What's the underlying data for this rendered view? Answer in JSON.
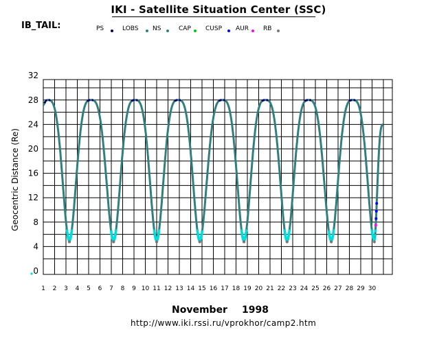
{
  "header": {
    "title": "IKI - Satellite Situation Center (SSC)",
    "region_label": "IB_TAIL:"
  },
  "legend": [
    {
      "label": "PS",
      "color": "#000066"
    },
    {
      "label": "LOBS",
      "color": "#2f7f7f"
    },
    {
      "label": "NS",
      "color": "#2f7f7f"
    },
    {
      "label": "CAP",
      "color": "#00cc00"
    },
    {
      "label": "CUSP",
      "color": "#0000ff"
    },
    {
      "label": "AUR",
      "color": "#ff00ff"
    },
    {
      "label": "RB",
      "color": "#00dddd"
    },
    {
      "label": "",
      "color": "#777777"
    }
  ],
  "footer": {
    "month": "November",
    "year": "1998",
    "url": "http://www.iki.rssi.ru/vprokhor/camp2.htm"
  },
  "chart_data": {
    "type": "line",
    "title": "IKI - Satellite Situation Center (SSC)",
    "xlabel": "November 1998",
    "ylabel": "Geocentric Distance (Re)",
    "xlim": [
      1,
      31.5
    ],
    "ylim": [
      0,
      33
    ],
    "grid": true,
    "x_ticks": [
      "1",
      "2",
      "3",
      "4",
      "5",
      "6",
      "7",
      "8",
      "9",
      "10",
      "11",
      "12",
      "13",
      "14",
      "15",
      "16",
      "17",
      "18",
      "19",
      "20",
      "21",
      "22",
      "23",
      "24",
      "25",
      "26",
      "27",
      "28",
      "29",
      "30"
    ],
    "y_ticks": [
      "0",
      "4",
      "8",
      "12",
      "16",
      "20",
      "24",
      "28",
      "32"
    ],
    "y_tick_values": [
      0,
      4,
      8,
      12,
      16,
      20,
      24,
      28,
      32
    ],
    "series_color": "#2f7f7f",
    "apogee_days": [
      1.4,
      5.2,
      9.1,
      12.9,
      16.8,
      20.6,
      24.4,
      28.3
    ],
    "perigee_days": [
      3.3,
      7.2,
      11.0,
      14.8,
      18.7,
      22.5,
      26.4,
      30.2
    ],
    "apogee_re": 28,
    "perigee_re": 5,
    "series": [
      {
        "name": "Geocentric Distance",
        "x": [
          1.0,
          1.4,
          2.0,
          2.6,
          3.0,
          3.3,
          3.6,
          4.2,
          4.8,
          5.2,
          5.8,
          6.4,
          6.9,
          7.2,
          7.5,
          8.1,
          8.7,
          9.1,
          9.7,
          10.3,
          10.7,
          11.0,
          11.3,
          11.9,
          12.5,
          12.9,
          13.5,
          14.1,
          14.5,
          14.8,
          15.1,
          15.8,
          16.4,
          16.8,
          17.4,
          18.0,
          18.4,
          18.7,
          19.0,
          19.6,
          20.2,
          20.6,
          21.2,
          21.8,
          22.2,
          22.5,
          22.8,
          23.4,
          24.0,
          24.4,
          25.0,
          25.6,
          26.1,
          26.4,
          26.7,
          27.3,
          27.9,
          28.3,
          28.9,
          29.5,
          29.9,
          30.2,
          30.5,
          31.0,
          31.5
        ],
        "y": [
          27.2,
          28.0,
          26.5,
          20.0,
          12.5,
          5.0,
          12.5,
          23.5,
          27.5,
          28.0,
          26.5,
          20.0,
          12.5,
          5.0,
          12.5,
          23.5,
          27.5,
          28.0,
          26.5,
          20.0,
          12.5,
          5.0,
          12.5,
          23.5,
          27.5,
          28.0,
          26.5,
          20.0,
          12.5,
          5.0,
          12.5,
          23.5,
          27.5,
          28.0,
          26.5,
          20.0,
          12.5,
          5.0,
          12.5,
          23.5,
          27.5,
          28.0,
          26.5,
          20.0,
          12.5,
          5.0,
          12.5,
          23.5,
          27.5,
          28.0,
          26.5,
          20.0,
          12.5,
          5.0,
          12.5,
          23.5,
          27.5,
          28.0,
          26.5,
          20.0,
          12.5,
          5.0,
          12.5,
          20.5,
          24.0
        ]
      }
    ]
  }
}
